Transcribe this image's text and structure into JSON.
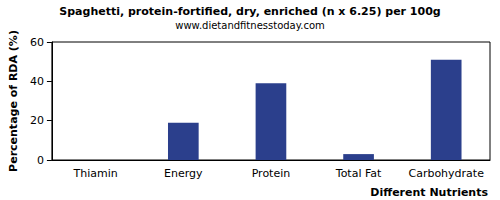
{
  "chart_data": {
    "type": "bar",
    "title": "Spaghetti, protein-fortified, dry, enriched (n x 6.25) per 100g",
    "subtitle": "www.dietandfitnesstoday.com",
    "x_label": "Different Nutrients",
    "y_label": "Percentage of RDA (%)",
    "categories": [
      "Thiamin",
      "Energy",
      "Protein",
      "Total Fat",
      "Carbohydrate"
    ],
    "values": [
      0,
      19,
      39,
      3,
      51
    ],
    "color": "#2b3f8c",
    "ylim": [
      0,
      60
    ],
    "yticks": [
      0,
      20,
      40,
      60
    ],
    "grid": false
  }
}
